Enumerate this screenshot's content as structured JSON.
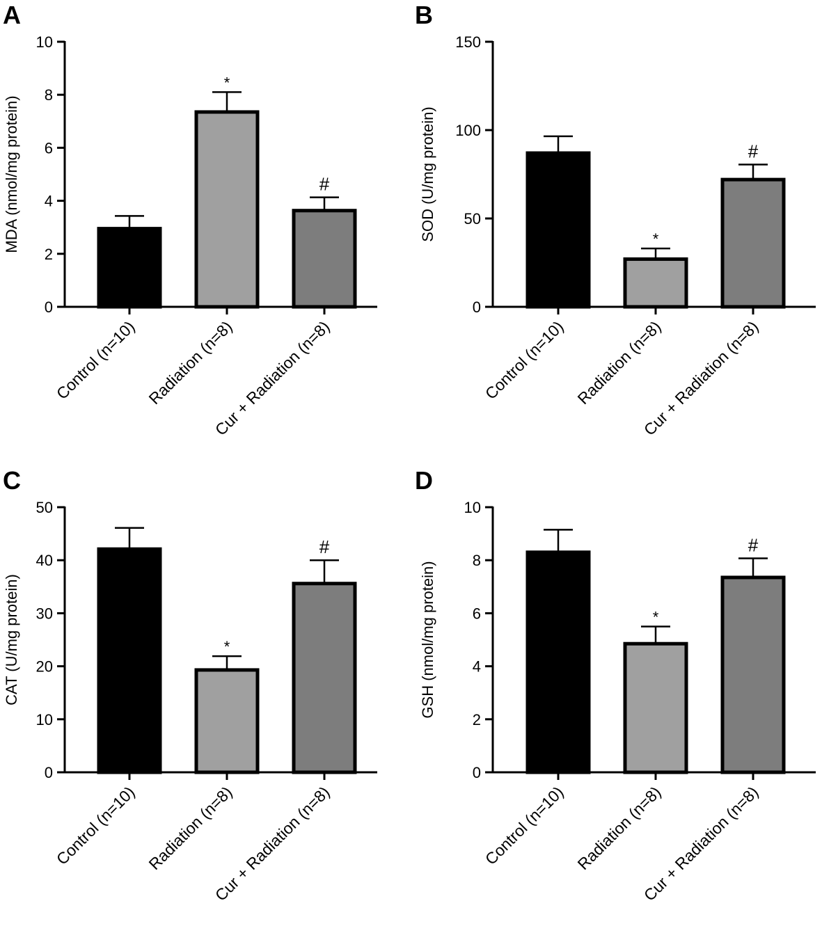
{
  "colors": {
    "control": "#000000",
    "radiation": "#a0a0a0",
    "cur_radiation": "#7d7d7d",
    "stroke": "#000000"
  },
  "chart_data": [
    {
      "panel": "A",
      "type": "bar",
      "ylabel": "MDA (nmol/mg protein)",
      "ylim": [
        0,
        10
      ],
      "yticks": [
        0,
        2,
        4,
        6,
        8,
        10
      ],
      "categories": [
        "Control (n=10)",
        "Radiation (n=8)",
        "Cur + Radiation (n=8)"
      ],
      "values": [
        2.95,
        7.35,
        3.63
      ],
      "errors": [
        0.48,
        0.75,
        0.5
      ],
      "annotations": [
        "",
        "*",
        "#"
      ]
    },
    {
      "panel": "B",
      "type": "bar",
      "ylabel": "SOD (U/mg protein)",
      "ylim": [
        0,
        150
      ],
      "yticks": [
        0,
        50,
        100,
        150
      ],
      "categories": [
        "Control (n=10)",
        "Radiation (n=8)",
        "Cur + Radiation (n=8)"
      ],
      "values": [
        87,
        27,
        72
      ],
      "errors": [
        9.5,
        6,
        8.5
      ],
      "annotations": [
        "",
        "*",
        "#"
      ]
    },
    {
      "panel": "C",
      "type": "bar",
      "ylabel": "CAT (U/mg protein)",
      "ylim": [
        0,
        50
      ],
      "yticks": [
        0,
        10,
        20,
        30,
        40,
        50
      ],
      "categories": [
        "Control (n=10)",
        "Radiation (n=8)",
        "Cur + Radiation (n=8)"
      ],
      "values": [
        42.1,
        19.3,
        35.6
      ],
      "errors": [
        4,
        2.6,
        4.4
      ],
      "annotations": [
        "",
        "*",
        "#"
      ]
    },
    {
      "panel": "D",
      "type": "bar",
      "ylabel": "GSH (nmol/mg protein)",
      "ylim": [
        0,
        10
      ],
      "yticks": [
        0,
        2,
        4,
        6,
        8,
        10
      ],
      "categories": [
        "Control (n=10)",
        "Radiation (n=8)",
        "Cur + Radiation (n=8)"
      ],
      "values": [
        8.3,
        4.85,
        7.35
      ],
      "errors": [
        0.85,
        0.65,
        0.72
      ],
      "annotations": [
        "",
        "*",
        "#"
      ]
    }
  ]
}
